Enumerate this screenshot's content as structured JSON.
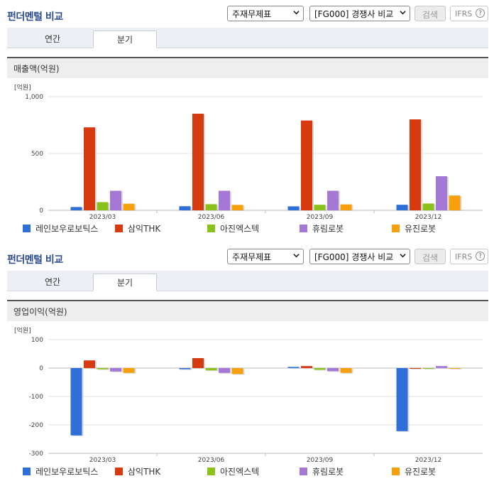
{
  "panels": [
    {
      "title": "펀더멘털 비교",
      "select1": "주재무제표",
      "select2": "[FG000] 경쟁사 비교",
      "search_label": "검색",
      "ifrs_label": "IFRS",
      "help_icon": "?",
      "tabs": [
        "연간",
        "분기"
      ],
      "active_tab": "분기",
      "section_title": "매출액(억원)"
    },
    {
      "title": "펀더멘털 비교",
      "select1": "주재무제표",
      "select2": "[FG000] 경쟁사 비교",
      "search_label": "검색",
      "ifrs_label": "IFRS",
      "help_icon": "?",
      "tabs": [
        "연간",
        "분기"
      ],
      "active_tab": "분기",
      "section_title": "영업이익(억원)"
    }
  ],
  "chart_data": [
    {
      "type": "bar",
      "unit_label": "[억원]",
      "categories": [
        "2023/03",
        "2023/06",
        "2023/09",
        "2023/12"
      ],
      "ylim": [
        0,
        1000
      ],
      "yticks": [
        "0",
        "500",
        "1,000"
      ],
      "ytick_values": [
        0,
        500,
        1000
      ],
      "grid": true,
      "legend": "bottom",
      "series": [
        {
          "name": "레인보우로보틱스",
          "color": "#2e6fd8",
          "values": [
            29,
            36,
            35,
            49
          ]
        },
        {
          "name": "삼익THK",
          "color": "#d83a10",
          "values": [
            730,
            850,
            790,
            800
          ]
        },
        {
          "name": "아진엑스텍",
          "color": "#8ac11b",
          "values": [
            72,
            54,
            49,
            60
          ]
        },
        {
          "name": "휴림로봇",
          "color": "#a678d6",
          "values": [
            172,
            172,
            172,
            300
          ]
        },
        {
          "name": "유진로봇",
          "color": "#f5a00c",
          "values": [
            58,
            48,
            52,
            130
          ]
        }
      ]
    },
    {
      "type": "bar",
      "unit_label": "[억원]",
      "categories": [
        "2023/03",
        "2023/06",
        "2023/09",
        "2023/12"
      ],
      "ylim": [
        -300,
        100
      ],
      "yticks": [
        "-300",
        "-200",
        "-100",
        "0",
        "100"
      ],
      "ytick_values": [
        -300,
        -200,
        -100,
        0,
        100
      ],
      "grid": true,
      "legend": "bottom",
      "series": [
        {
          "name": "레인보우로보틱스",
          "color": "#2e6fd8",
          "values": [
            -237,
            -4,
            4,
            -222
          ]
        },
        {
          "name": "삼익THK",
          "color": "#d83a10",
          "values": [
            27,
            35,
            7,
            0
          ]
        },
        {
          "name": "아진엑스텍",
          "color": "#8ac11b",
          "values": [
            -4,
            -8,
            -6,
            0
          ]
        },
        {
          "name": "휴림로봇",
          "color": "#a678d6",
          "values": [
            -12,
            -17,
            -11,
            7
          ]
        },
        {
          "name": "유진로봇",
          "color": "#f5a00c",
          "values": [
            -17,
            -21,
            -17,
            0
          ]
        }
      ]
    }
  ]
}
